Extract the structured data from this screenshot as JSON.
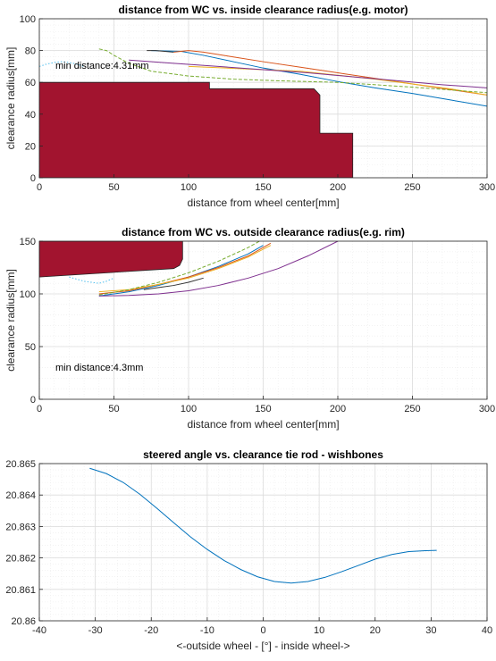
{
  "chart_data": [
    {
      "type": "line",
      "title": "distance from WC vs. inside clearance radius(e.g. motor)",
      "xlabel": "distance from wheel center[mm]",
      "ylabel": "clearance radius[mm]",
      "xlim": [
        0,
        300
      ],
      "ylim": [
        0,
        100
      ],
      "xticks": [
        "0",
        "50",
        "100",
        "150",
        "200",
        "250",
        "300"
      ],
      "yticks": [
        "0",
        "20",
        "40",
        "60",
        "80",
        "100"
      ],
      "grid": true,
      "annotation": "min distance:4.31mm",
      "obstacle": {
        "color": "#A2142F",
        "outline": [
          [
            0,
            0
          ],
          [
            0,
            60
          ],
          [
            114,
            60
          ],
          [
            114,
            56
          ],
          [
            184,
            56
          ],
          [
            188,
            52
          ],
          [
            188,
            28
          ],
          [
            210,
            28
          ],
          [
            210,
            0
          ]
        ]
      },
      "series": [
        {
          "color": "#0072BD",
          "style": "solid",
          "x": [
            75,
            95,
            110,
            130,
            150,
            175,
            200,
            225,
            250,
            275,
            300
          ],
          "y": [
            80,
            79.5,
            77,
            73,
            69,
            65,
            60.5,
            56.5,
            53,
            49,
            45
          ]
        },
        {
          "color": "#D95319",
          "style": "solid",
          "x": [
            90,
            100,
            110,
            130,
            150,
            175,
            200,
            225,
            250,
            275,
            300
          ],
          "y": [
            79,
            80,
            79,
            76,
            73,
            69.5,
            66,
            62.5,
            59,
            55.5,
            52
          ]
        },
        {
          "color": "#EDB120",
          "style": "solid",
          "x": [
            100,
            125,
            150,
            175,
            200,
            225,
            250,
            275,
            300
          ],
          "y": [
            70,
            69,
            68,
            67,
            64.5,
            62,
            59,
            56,
            52
          ]
        },
        {
          "color": "#7E2F8E",
          "style": "solid",
          "x": [
            60,
            90,
            120,
            150,
            180,
            210,
            240,
            270,
            300
          ],
          "y": [
            74,
            72,
            70,
            68,
            66,
            63.5,
            61,
            58.5,
            56.5
          ]
        },
        {
          "color": "#77AC30",
          "style": "dashed",
          "x": [
            40,
            45,
            50,
            60,
            75,
            100,
            130,
            160,
            200,
            250,
            300
          ],
          "y": [
            81,
            80,
            77,
            72,
            67,
            64,
            62,
            61,
            60,
            57,
            53.5
          ]
        },
        {
          "color": "#4DBEEE",
          "style": "dotted",
          "x": [
            0,
            5,
            10,
            15,
            20,
            25,
            30
          ],
          "y": [
            70,
            71.5,
            72.5,
            73,
            72.5,
            71.5,
            70
          ]
        },
        {
          "color": "#333333",
          "style": "solid",
          "x": [
            72,
            78,
            84,
            90
          ],
          "y": [
            80,
            80,
            79.5,
            79
          ]
        }
      ]
    },
    {
      "type": "line",
      "title": "distance from WC vs. outside clearance radius(e.g. rim)",
      "xlabel": "distance from wheel center[mm]",
      "ylabel": "clearance radius[mm]",
      "xlim": [
        0,
        300
      ],
      "ylim": [
        0,
        150
      ],
      "xticks": [
        "0",
        "50",
        "100",
        "150",
        "200",
        "250",
        "300"
      ],
      "yticks": [
        "0",
        "50",
        "100",
        "150"
      ],
      "grid": true,
      "annotation": "min distance:4.3mm",
      "obstacle": {
        "color": "#A2142F",
        "outline": [
          [
            0,
            150
          ],
          [
            96,
            150
          ],
          [
            96,
            133
          ],
          [
            94,
            127
          ],
          [
            90,
            124
          ],
          [
            0,
            116
          ]
        ]
      },
      "series": [
        {
          "color": "#0072BD",
          "style": "solid",
          "x": [
            40,
            60,
            80,
            100,
            120,
            140,
            150
          ],
          "y": [
            98,
            102,
            108,
            116,
            126,
            138,
            146
          ]
        },
        {
          "color": "#D95319",
          "style": "solid",
          "x": [
            40,
            60,
            80,
            100,
            120,
            140,
            155
          ],
          "y": [
            100,
            103,
            109,
            116,
            125,
            136,
            148
          ]
        },
        {
          "color": "#EDB120",
          "style": "solid",
          "x": [
            40,
            60,
            80,
            100,
            120,
            140,
            155
          ],
          "y": [
            102,
            104,
            109,
            115,
            124,
            135,
            146
          ]
        },
        {
          "color": "#7E2F8E",
          "style": "solid",
          "x": [
            40,
            60,
            80,
            100,
            120,
            140,
            160,
            180,
            200
          ],
          "y": [
            98,
            98.5,
            100,
            103,
            108,
            115,
            124,
            136,
            150
          ]
        },
        {
          "color": "#77AC30",
          "style": "dashed",
          "x": [
            40,
            60,
            80,
            100,
            120,
            140,
            150
          ],
          "y": [
            99,
            104,
            111,
            120,
            131,
            144,
            152
          ]
        },
        {
          "color": "#4DBEEE",
          "style": "dotted",
          "x": [
            20,
            25,
            30,
            35,
            40,
            45,
            50
          ],
          "y": [
            116,
            114,
            112,
            111,
            110,
            112,
            115
          ]
        },
        {
          "color": "#333333",
          "style": "solid",
          "x": [
            70,
            80,
            90,
            100,
            110
          ],
          "y": [
            104,
            106,
            108,
            111,
            115
          ]
        }
      ]
    },
    {
      "type": "line",
      "title": "steered angle vs. clearance tie rod - wishbones",
      "xlabel": "<-outside wheel - [°] - inside wheel->",
      "ylabel": "",
      "xlim": [
        -40,
        40
      ],
      "ylim": [
        20.86,
        20.865
      ],
      "xticks": [
        "-40",
        "-30",
        "-20",
        "-10",
        "0",
        "10",
        "20",
        "30",
        "40"
      ],
      "yticks": [
        "20.86",
        "20.861",
        "20.862",
        "20.863",
        "20.864",
        "20.865"
      ],
      "grid": true,
      "series": [
        {
          "color": "#0072BD",
          "style": "solid",
          "x": [
            -31,
            -28,
            -25,
            -22,
            -19,
            -16,
            -13,
            -10,
            -7,
            -4,
            -1,
            2,
            5,
            8,
            11,
            14,
            17,
            20,
            23,
            26,
            29,
            31
          ],
          "y": [
            20.86485,
            20.86468,
            20.8644,
            20.86402,
            20.86358,
            20.86312,
            20.86267,
            20.86227,
            20.86192,
            20.86163,
            20.8614,
            20.86125,
            20.8612,
            20.86125,
            20.86138,
            20.86156,
            20.86176,
            20.86196,
            20.86211,
            20.8622,
            20.86223,
            20.86224
          ]
        }
      ]
    }
  ]
}
